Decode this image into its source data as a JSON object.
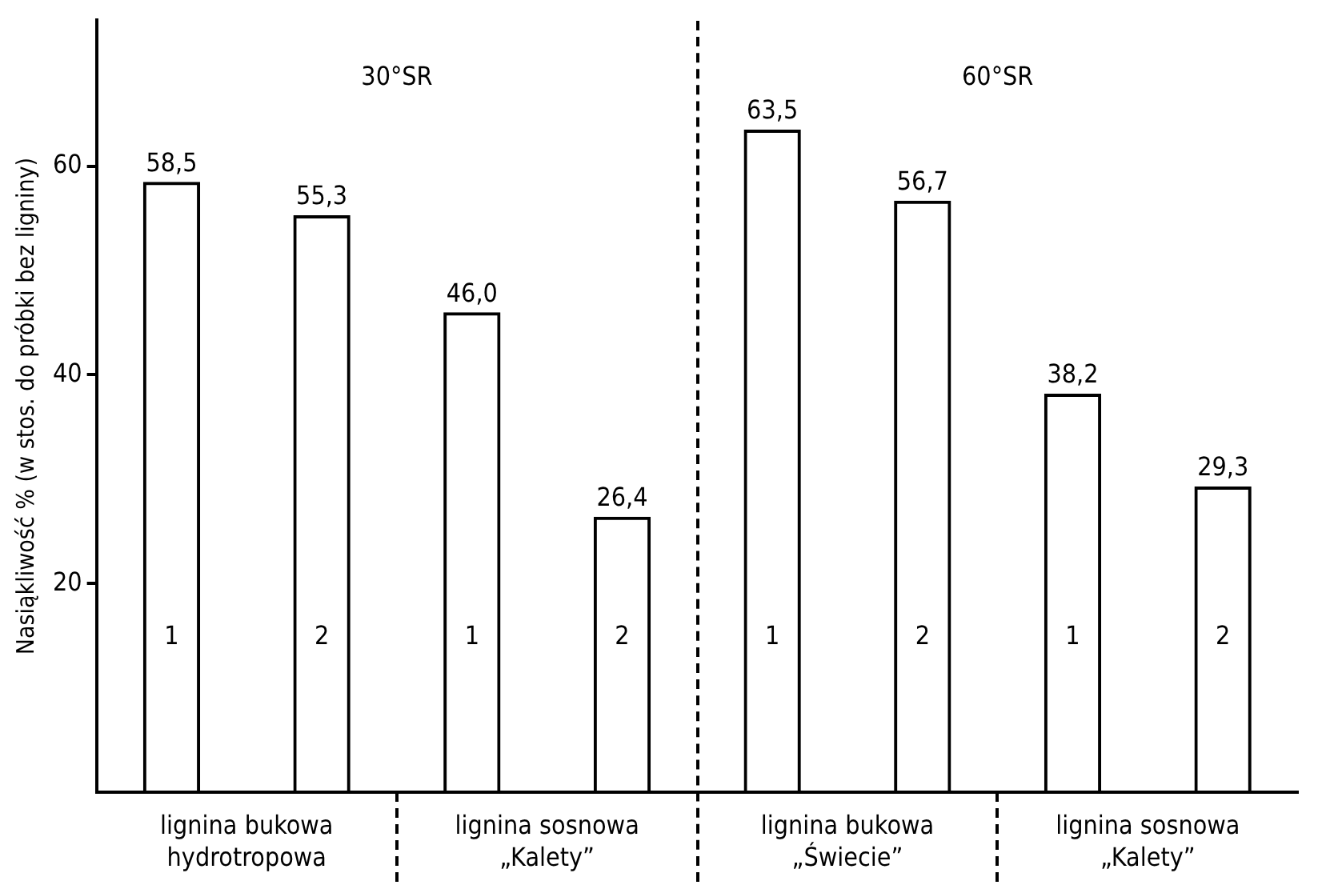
{
  "chart_data": {
    "type": "bar",
    "ylabel": "Nasiąkliwość % (w stos. do próbki bez ligniny)",
    "categories": [
      "1",
      "2",
      "1",
      "2",
      "1",
      "2",
      "1",
      "2"
    ],
    "values": [
      58.5,
      55.3,
      46.0,
      26.4,
      63.5,
      56.7,
      38.2,
      29.3
    ],
    "value_labels": [
      "58,5",
      "55,3",
      "46,0",
      "26,4",
      "63,5",
      "56,7",
      "38,2",
      "29,3"
    ],
    "color": "#000000",
    "ylim": [
      0,
      74
    ],
    "yticks": [
      20,
      40,
      60
    ],
    "grid": false,
    "legend": false,
    "annotations": [
      "30°SR",
      "60°SR",
      "lignina bukowa\nhydrotropowa",
      "lignina sosnowa\n„Kalety”",
      "lignina bukowa\n„Świecie”",
      "lignina sosnowa\n„Kalety”"
    ]
  }
}
